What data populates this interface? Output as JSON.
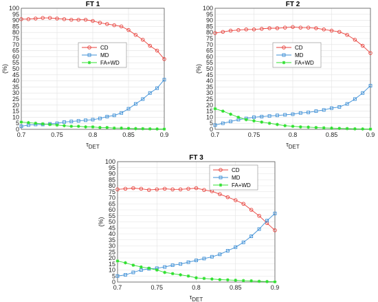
{
  "chart_data": [
    {
      "type": "line",
      "title": "FT 1",
      "xlabel": "τDET",
      "ylabel": "(%)",
      "xlim": [
        0.7,
        0.9
      ],
      "ylim": [
        0,
        100
      ],
      "xticks": [
        "0.7",
        "0.75",
        "0.8",
        "0.85",
        "0.9"
      ],
      "yticks": [
        "0",
        "5",
        "10",
        "15",
        "20",
        "25",
        "30",
        "35",
        "40",
        "45",
        "50",
        "55",
        "60",
        "65",
        "70",
        "75",
        "80",
        "85",
        "90",
        "95",
        "100"
      ],
      "grid": true,
      "legend": "center",
      "x": [
        0.7,
        0.71,
        0.72,
        0.73,
        0.74,
        0.75,
        0.76,
        0.77,
        0.78,
        0.79,
        0.8,
        0.81,
        0.82,
        0.83,
        0.84,
        0.85,
        0.86,
        0.87,
        0.88,
        0.89,
        0.9
      ],
      "series": [
        {
          "name": "CD",
          "color": "#e8413b",
          "marker": "circle",
          "values": [
            91,
            91,
            91.5,
            92,
            92,
            91.5,
            91,
            90.5,
            90.5,
            90.5,
            89.5,
            88,
            87,
            86,
            85,
            82,
            78,
            74,
            69,
            65,
            58
          ]
        },
        {
          "name": "MD",
          "color": "#3d8fd6",
          "marker": "square",
          "values": [
            2.5,
            3.5,
            4,
            4,
            4.5,
            5,
            6,
            6.5,
            7,
            7.5,
            8,
            9,
            10.5,
            11.5,
            13.5,
            17,
            21,
            25,
            30,
            34,
            41
          ]
        },
        {
          "name": "FA+WD",
          "color": "#2fe02f",
          "marker": "star",
          "values": [
            6,
            5.5,
            5,
            4.5,
            4,
            3.5,
            3,
            2.5,
            2.5,
            2,
            2,
            1.5,
            1.5,
            1,
            1,
            0.8,
            0.6,
            0.5,
            0.4,
            0.3,
            0.2
          ]
        }
      ]
    },
    {
      "type": "line",
      "title": "FT 2",
      "xlabel": "τDET",
      "ylabel": "(%)",
      "xlim": [
        0.7,
        0.9
      ],
      "ylim": [
        0,
        100
      ],
      "xticks": [
        "0.7",
        "0.75",
        "0.8",
        "0.85",
        "0.9"
      ],
      "yticks": [
        "0",
        "5",
        "10",
        "15",
        "20",
        "25",
        "30",
        "35",
        "40",
        "45",
        "50",
        "55",
        "60",
        "65",
        "70",
        "75",
        "80",
        "85",
        "90",
        "95",
        "100"
      ],
      "grid": true,
      "legend": "center",
      "x": [
        0.7,
        0.71,
        0.72,
        0.73,
        0.74,
        0.75,
        0.76,
        0.77,
        0.78,
        0.79,
        0.8,
        0.81,
        0.82,
        0.83,
        0.84,
        0.85,
        0.86,
        0.87,
        0.88,
        0.89,
        0.9
      ],
      "series": [
        {
          "name": "CD",
          "color": "#e8413b",
          "marker": "circle",
          "values": [
            79.5,
            80.5,
            81.5,
            82,
            82.5,
            82.5,
            83,
            83.5,
            83.5,
            84,
            84.5,
            84,
            84,
            83.5,
            82.5,
            81.5,
            80.5,
            78,
            74,
            69,
            63
          ]
        },
        {
          "name": "MD",
          "color": "#3d8fd6",
          "marker": "square",
          "values": [
            3.5,
            5,
            6.5,
            8,
            9,
            10,
            10.5,
            11,
            11.5,
            12,
            12.5,
            13.5,
            14,
            15,
            16,
            17.5,
            18.5,
            21,
            25,
            30,
            36
          ]
        },
        {
          "name": "FA+WD",
          "color": "#2fe02f",
          "marker": "star",
          "values": [
            17,
            15,
            12.5,
            10,
            8,
            7,
            6,
            5,
            4,
            3,
            2.5,
            2,
            1.8,
            1.5,
            1.2,
            1,
            0.8,
            0.6,
            0.4,
            0.3,
            0.2
          ]
        }
      ]
    },
    {
      "type": "line",
      "title": "FT 3",
      "xlabel": "τDET",
      "ylabel": "(%)",
      "xlim": [
        0.7,
        0.9
      ],
      "ylim": [
        0,
        100
      ],
      "xticks": [
        "0.7",
        "0.75",
        "0.8",
        "0.85",
        "0.9"
      ],
      "yticks": [
        "0",
        "5",
        "10",
        "15",
        "20",
        "25",
        "30",
        "35",
        "40",
        "45",
        "50",
        "55",
        "60",
        "65",
        "70",
        "75",
        "80",
        "85",
        "90",
        "95",
        "100"
      ],
      "grid": true,
      "legend": "top-right",
      "x": [
        0.7,
        0.71,
        0.72,
        0.73,
        0.74,
        0.75,
        0.76,
        0.77,
        0.78,
        0.79,
        0.8,
        0.81,
        0.82,
        0.83,
        0.84,
        0.85,
        0.86,
        0.87,
        0.88,
        0.89,
        0.9
      ],
      "series": [
        {
          "name": "CD",
          "color": "#e8413b",
          "marker": "circle",
          "values": [
            77,
            77.5,
            78,
            77.5,
            76.5,
            77,
            77.5,
            77,
            77,
            77.5,
            78,
            76.5,
            75.5,
            73,
            70.5,
            68,
            65,
            60,
            55,
            49,
            43
          ]
        },
        {
          "name": "MD",
          "color": "#3d8fd6",
          "marker": "square",
          "values": [
            5,
            6,
            8,
            10,
            11,
            11.5,
            12.5,
            14,
            15,
            16.5,
            18,
            19.5,
            21,
            23,
            26,
            29,
            33,
            38,
            44,
            51,
            57
          ]
        },
        {
          "name": "FA+WD",
          "color": "#2fe02f",
          "marker": "star",
          "values": [
            17.5,
            16,
            14,
            12.5,
            11.5,
            10,
            8,
            7,
            6,
            5,
            3.5,
            3,
            2.5,
            2,
            1.8,
            1.5,
            1.2,
            1,
            0.6,
            0.4,
            0.2
          ]
        }
      ]
    }
  ]
}
